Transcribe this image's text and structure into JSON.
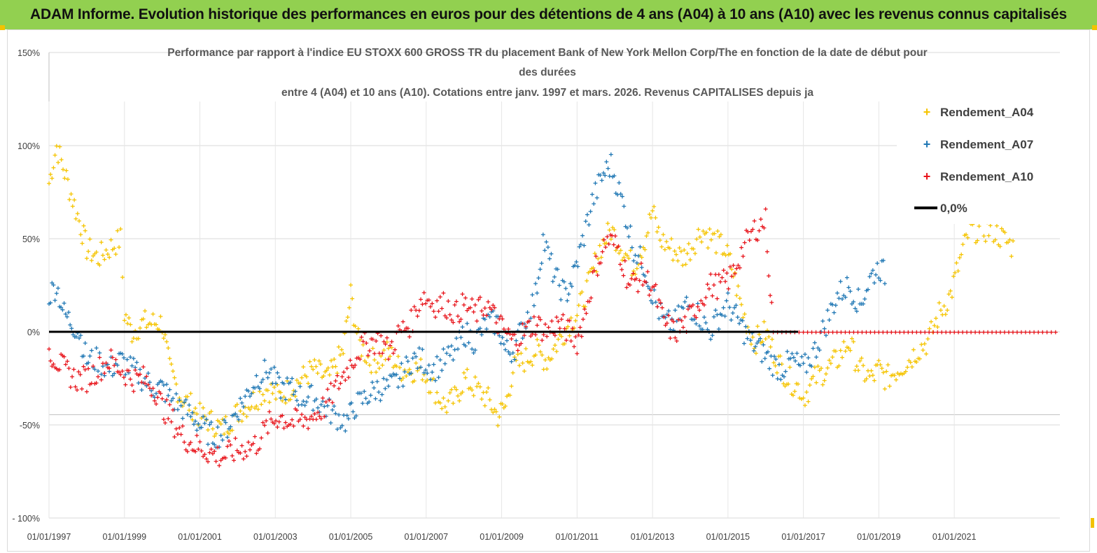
{
  "header": {
    "banner_title": "ADAM Informe. Evolution historique des performances en euros pour des détentions de 4 ans (A04) à 10 ans (A10) avec les revenus connus capitalisés"
  },
  "colors": {
    "banner_bg": "#92d050",
    "A04": "#f5c400",
    "A07": "#1f77b4",
    "A10": "#e8141b",
    "zero_line": "#000000"
  },
  "chart_data": {
    "type": "scatter",
    "title_lines": [
      "Performance par rapport à l'indice EU STOXX 600 GROSS TR  du placement Bank of New York Mellon Corp/The en fonction de la date de début pour",
      "des durées",
      "entre 4 (A04) et 10 ans (A10). Cotations entre janv. 1997 et mars. 2026. Revenus CAPITALISES depuis ja"
    ],
    "x_ticks": [
      "01/01/1997",
      "01/01/1999",
      "01/01/2001",
      "01/01/2003",
      "01/01/2005",
      "01/01/2007",
      "01/01/2009",
      "01/01/2011",
      "01/01/2013",
      "01/01/2015",
      "01/01/2017",
      "01/01/2019",
      "01/01/2021"
    ],
    "y_ticks": [
      "150%",
      "100%",
      "50%",
      "0%",
      "-50%",
      "- 100%"
    ],
    "xlim": [
      1997.0,
      2023.8
    ],
    "ylim": [
      -100,
      150
    ],
    "marker": "+",
    "grid": "horizontal",
    "legend_position": "top-right",
    "series": [
      {
        "name": "Rendement_A04",
        "color": "#f5c400",
        "points": [
          [
            1997.0,
            80
          ],
          [
            1997.2,
            100
          ],
          [
            1997.5,
            80
          ],
          [
            1997.8,
            60
          ],
          [
            1998.0,
            45
          ],
          [
            1998.3,
            40
          ],
          [
            1998.6,
            45
          ],
          [
            1998.9,
            50
          ],
          [
            1999.0,
            10
          ],
          [
            1999.2,
            0
          ],
          [
            1999.5,
            5
          ],
          [
            1999.8,
            5
          ],
          [
            2000.0,
            5
          ],
          [
            2000.2,
            -20
          ],
          [
            2000.5,
            -35
          ],
          [
            2000.8,
            -40
          ],
          [
            2001.0,
            -45
          ],
          [
            2001.3,
            -48
          ],
          [
            2001.6,
            -52
          ],
          [
            2001.9,
            -45
          ],
          [
            2002.2,
            -40
          ],
          [
            2002.5,
            -35
          ],
          [
            2002.8,
            -30
          ],
          [
            2003.1,
            -35
          ],
          [
            2003.4,
            -30
          ],
          [
            2003.7,
            -25
          ],
          [
            2004.0,
            -20
          ],
          [
            2004.4,
            -25
          ],
          [
            2004.8,
            -10
          ],
          [
            2005.0,
            20
          ],
          [
            2005.2,
            -5
          ],
          [
            2005.5,
            -15
          ],
          [
            2005.8,
            -15
          ],
          [
            2006.0,
            -10
          ],
          [
            2006.3,
            -20
          ],
          [
            2006.6,
            -20
          ],
          [
            2006.9,
            -20
          ],
          [
            2007.2,
            -30
          ],
          [
            2007.5,
            -40
          ],
          [
            2007.8,
            -35
          ],
          [
            2008.0,
            -25
          ],
          [
            2008.3,
            -30
          ],
          [
            2008.6,
            -35
          ],
          [
            2008.9,
            -45
          ],
          [
            2009.1,
            -40
          ],
          [
            2009.3,
            -20
          ],
          [
            2009.6,
            -15
          ],
          [
            2009.9,
            -10
          ],
          [
            2010.2,
            -15
          ],
          [
            2010.5,
            -5
          ],
          [
            2010.8,
            5
          ],
          [
            2011.0,
            10
          ],
          [
            2011.3,
            25
          ],
          [
            2011.6,
            45
          ],
          [
            2011.9,
            55
          ],
          [
            2012.2,
            45
          ],
          [
            2012.5,
            35
          ],
          [
            2012.8,
            50
          ],
          [
            2013.0,
            65
          ],
          [
            2013.2,
            50
          ],
          [
            2013.5,
            45
          ],
          [
            2013.8,
            40
          ],
          [
            2014.0,
            45
          ],
          [
            2014.3,
            55
          ],
          [
            2014.6,
            50
          ],
          [
            2014.9,
            45
          ],
          [
            2015.1,
            35
          ],
          [
            2015.4,
            10
          ],
          [
            2015.7,
            -5
          ],
          [
            2016.0,
            0
          ],
          [
            2016.3,
            -15
          ],
          [
            2016.6,
            -25
          ],
          [
            2016.9,
            -30
          ],
          [
            2017.0,
            -35
          ],
          [
            2017.3,
            -25
          ],
          [
            2017.6,
            -20
          ],
          [
            2017.9,
            -15
          ],
          [
            2018.2,
            -5
          ],
          [
            2018.5,
            -20
          ],
          [
            2018.8,
            -25
          ],
          [
            2019.0,
            -20
          ],
          [
            2019.2,
            -25
          ],
          [
            2019.5,
            -20
          ],
          [
            2019.8,
            -15
          ],
          [
            2020.0,
            -10
          ],
          [
            2020.3,
            -5
          ],
          [
            2020.6,
            10
          ],
          [
            2020.9,
            20
          ],
          [
            2021.1,
            35
          ],
          [
            2021.4,
            55
          ],
          [
            2021.7,
            55
          ],
          [
            2022.0,
            55
          ],
          [
            2022.3,
            50
          ],
          [
            2022.6,
            45
          ]
        ]
      },
      {
        "name": "Rendement_A07",
        "color": "#1f77b4",
        "points": [
          [
            1997.0,
            20
          ],
          [
            1997.2,
            25
          ],
          [
            1997.4,
            10
          ],
          [
            1997.6,
            5
          ],
          [
            1997.8,
            0
          ],
          [
            1998.0,
            -15
          ],
          [
            1998.3,
            -15
          ],
          [
            1998.6,
            -20
          ],
          [
            1998.9,
            -15
          ],
          [
            1999.2,
            -20
          ],
          [
            1999.5,
            -25
          ],
          [
            1999.8,
            -30
          ],
          [
            2000.0,
            -30
          ],
          [
            2000.2,
            -35
          ],
          [
            2000.5,
            -40
          ],
          [
            2000.8,
            -45
          ],
          [
            2001.0,
            -50
          ],
          [
            2001.3,
            -55
          ],
          [
            2001.6,
            -55
          ],
          [
            2001.9,
            -45
          ],
          [
            2002.2,
            -35
          ],
          [
            2002.5,
            -25
          ],
          [
            2002.8,
            -20
          ],
          [
            2003.1,
            -30
          ],
          [
            2003.4,
            -30
          ],
          [
            2003.7,
            -35
          ],
          [
            2004.0,
            -35
          ],
          [
            2004.3,
            -40
          ],
          [
            2004.6,
            -45
          ],
          [
            2004.9,
            -48
          ],
          [
            2005.1,
            -40
          ],
          [
            2005.4,
            -35
          ],
          [
            2005.7,
            -30
          ],
          [
            2006.0,
            -30
          ],
          [
            2006.3,
            -25
          ],
          [
            2006.6,
            -15
          ],
          [
            2006.9,
            -15
          ],
          [
            2007.2,
            -20
          ],
          [
            2007.5,
            -15
          ],
          [
            2007.8,
            -10
          ],
          [
            2008.0,
            0
          ],
          [
            2008.3,
            -5
          ],
          [
            2008.6,
            5
          ],
          [
            2008.9,
            5
          ],
          [
            2009.1,
            -10
          ],
          [
            2009.3,
            -10
          ],
          [
            2009.6,
            5
          ],
          [
            2009.9,
            20
          ],
          [
            2010.1,
            50
          ],
          [
            2010.4,
            30
          ],
          [
            2010.7,
            20
          ],
          [
            2010.9,
            30
          ],
          [
            2011.1,
            45
          ],
          [
            2011.4,
            70
          ],
          [
            2011.7,
            85
          ],
          [
            2011.9,
            90
          ],
          [
            2012.2,
            70
          ],
          [
            2012.5,
            45
          ],
          [
            2012.8,
            35
          ],
          [
            2013.0,
            20
          ],
          [
            2013.3,
            5
          ],
          [
            2013.6,
            5
          ],
          [
            2013.9,
            15
          ],
          [
            2014.2,
            10
          ],
          [
            2014.5,
            0
          ],
          [
            2014.8,
            10
          ],
          [
            2015.0,
            15
          ],
          [
            2015.3,
            5
          ],
          [
            2015.6,
            -5
          ],
          [
            2015.9,
            -10
          ],
          [
            2016.1,
            -15
          ],
          [
            2016.4,
            -20
          ],
          [
            2016.7,
            -15
          ],
          [
            2017.0,
            -20
          ],
          [
            2017.3,
            -10
          ],
          [
            2017.6,
            5
          ],
          [
            2017.9,
            20
          ],
          [
            2018.2,
            25
          ],
          [
            2018.5,
            15
          ],
          [
            2018.8,
            30
          ],
          [
            2019.0,
            35
          ],
          [
            2019.2,
            30
          ]
        ]
      },
      {
        "name": "Rendement_A10",
        "color": "#e8141b",
        "points": [
          [
            1997.0,
            -10
          ],
          [
            1997.2,
            -15
          ],
          [
            1997.4,
            -20
          ],
          [
            1997.7,
            -25
          ],
          [
            1998.0,
            -25
          ],
          [
            1998.3,
            -20
          ],
          [
            1998.6,
            -15
          ],
          [
            1998.9,
            -20
          ],
          [
            1999.2,
            -25
          ],
          [
            1999.5,
            -25
          ],
          [
            1999.8,
            -30
          ],
          [
            2000.0,
            -40
          ],
          [
            2000.2,
            -45
          ],
          [
            2000.5,
            -55
          ],
          [
            2000.8,
            -60
          ],
          [
            2001.0,
            -62
          ],
          [
            2001.3,
            -65
          ],
          [
            2001.6,
            -67
          ],
          [
            2001.9,
            -64
          ],
          [
            2002.2,
            -62
          ],
          [
            2002.5,
            -60
          ],
          [
            2002.8,
            -50
          ],
          [
            2003.1,
            -45
          ],
          [
            2003.4,
            -48
          ],
          [
            2003.7,
            -48
          ],
          [
            2004.0,
            -45
          ],
          [
            2004.3,
            -40
          ],
          [
            2004.6,
            -30
          ],
          [
            2004.9,
            -20
          ],
          [
            2005.2,
            -10
          ],
          [
            2005.5,
            -5
          ],
          [
            2005.8,
            -5
          ],
          [
            2006.0,
            -10
          ],
          [
            2006.3,
            0
          ],
          [
            2006.6,
            5
          ],
          [
            2006.9,
            20
          ],
          [
            2007.2,
            15
          ],
          [
            2007.5,
            15
          ],
          [
            2007.8,
            10
          ],
          [
            2008.0,
            15
          ],
          [
            2008.3,
            10
          ],
          [
            2008.6,
            15
          ],
          [
            2008.9,
            5
          ],
          [
            2009.1,
            0
          ],
          [
            2009.3,
            -5
          ],
          [
            2009.6,
            0
          ],
          [
            2009.9,
            5
          ],
          [
            2010.2,
            0
          ],
          [
            2010.5,
            5
          ],
          [
            2010.8,
            0
          ],
          [
            2011.0,
            -5
          ],
          [
            2011.2,
            10
          ],
          [
            2011.5,
            35
          ],
          [
            2011.8,
            50
          ],
          [
            2012.1,
            45
          ],
          [
            2012.4,
            25
          ],
          [
            2012.7,
            30
          ],
          [
            2013.0,
            25
          ],
          [
            2013.3,
            5
          ],
          [
            2013.6,
            0
          ],
          [
            2013.9,
            5
          ],
          [
            2014.2,
            15
          ],
          [
            2014.5,
            25
          ],
          [
            2014.8,
            25
          ],
          [
            2015.1,
            30
          ],
          [
            2015.4,
            45
          ],
          [
            2015.7,
            55
          ],
          [
            2016.0,
            60
          ],
          [
            2016.2,
            0
          ],
          [
            2017.0,
            0
          ],
          [
            2018.0,
            0
          ],
          [
            2019.0,
            0
          ],
          [
            2020.0,
            0
          ],
          [
            2021.0,
            0
          ],
          [
            2022.0,
            0
          ],
          [
            2023.0,
            0
          ],
          [
            2023.8,
            0
          ]
        ]
      }
    ],
    "reference_line": {
      "name": "0,0%",
      "value": 0,
      "color": "#000000"
    },
    "legend_entries": [
      "Rendement_A04",
      "Rendement_A07",
      "Rendement_A10",
      "0,0%"
    ]
  }
}
